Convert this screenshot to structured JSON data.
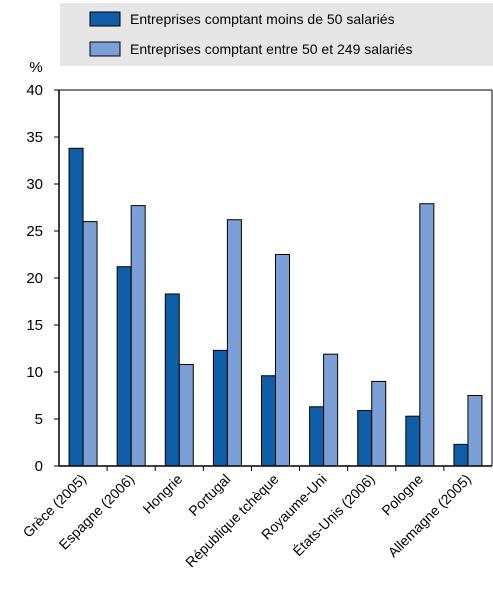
{
  "chart_data": {
    "type": "bar",
    "ylabel": "%",
    "ylim": [
      0,
      40
    ],
    "yticks": [
      0,
      5,
      10,
      15,
      20,
      25,
      30,
      35,
      40
    ],
    "grid": false,
    "legend_position": "top",
    "categories": [
      "Grèce (2005)",
      "Espagne (2006)",
      "Hongrie",
      "Portugal",
      "République tchèque",
      "Royaume-Uni",
      "États-Unis (2006)",
      "Pologne",
      "Allemagne (2005)"
    ],
    "series": [
      {
        "name": "Entreprises comptant moins de 50 salariés",
        "color": "#0f5fa8",
        "values": [
          33.8,
          21.2,
          18.3,
          12.3,
          9.6,
          6.3,
          5.9,
          5.3,
          2.3
        ]
      },
      {
        "name": "Entreprises comptant entre 50 et 249 salariés",
        "color": "#7b9fd6",
        "values": [
          26.0,
          27.7,
          10.8,
          26.2,
          22.5,
          11.9,
          9.0,
          27.9,
          7.5
        ]
      }
    ]
  }
}
